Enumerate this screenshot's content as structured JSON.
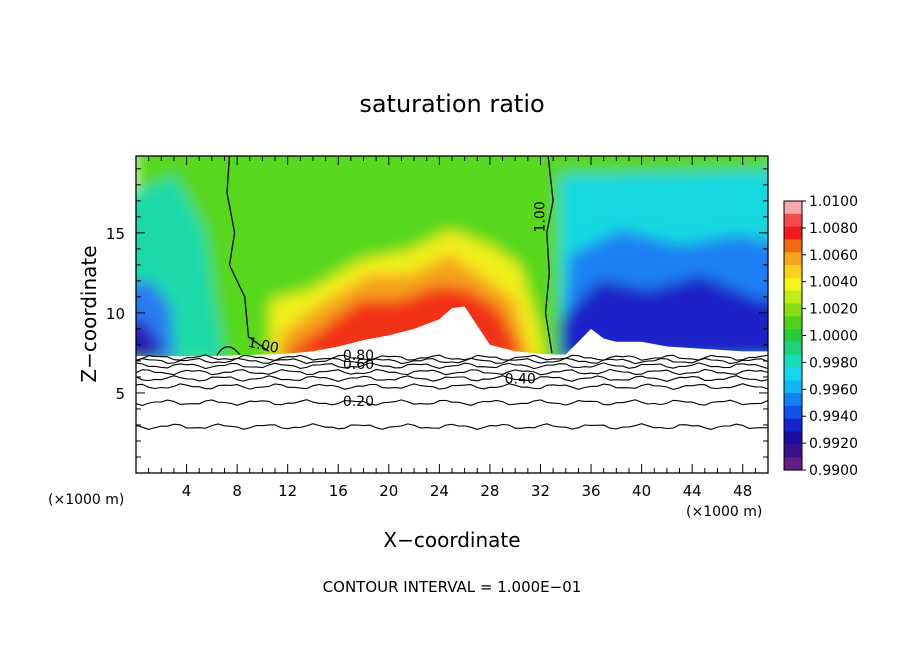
{
  "chart_data": {
    "type": "heatmap",
    "title": "saturation ratio",
    "xlabel": "X−coordinate",
    "ylabel": "Z−coordinate",
    "x_unit_left": "(×1000 m)",
    "x_unit_right": "(×1000 m)",
    "footer": "CONTOUR INTERVAL = 1.000E−01",
    "xlim": [
      0,
      50
    ],
    "ylim": [
      0,
      19.8
    ],
    "x_ticks": [
      4,
      8,
      12,
      16,
      20,
      24,
      28,
      32,
      36,
      40,
      44,
      48
    ],
    "y_ticks": [
      5,
      10,
      15
    ],
    "colorbar": {
      "levels": [
        "1.0100",
        "1.0080",
        "1.0060",
        "1.0040",
        "1.0020",
        "1.0000",
        "0.9980",
        "0.9960",
        "0.9940",
        "0.9920",
        "0.9900"
      ],
      "colors": [
        "#f7a7a7",
        "#f54b4b",
        "#f21a1a",
        "#f26a10",
        "#f7a51e",
        "#fbd01b",
        "#f4f41a",
        "#c2ec16",
        "#86de12",
        "#4fd31a",
        "#26cd3a",
        "#1cd57a",
        "#16dcc0",
        "#12d8ee",
        "#10b6f6",
        "#1082f4",
        "#1250ec",
        "#1422cf",
        "#1a0ea2",
        "#3a108a",
        "#681a86"
      ]
    },
    "surface_profile": [
      [
        0,
        7.3
      ],
      [
        4,
        7.3
      ],
      [
        6,
        7.3
      ],
      [
        8,
        7.35
      ],
      [
        10,
        7.4
      ],
      [
        12,
        7.45
      ],
      [
        14,
        7.6
      ],
      [
        16,
        7.9
      ],
      [
        18,
        8.3
      ],
      [
        20,
        8.6
      ],
      [
        22,
        9.0
      ],
      [
        24,
        9.6
      ],
      [
        25,
        10.3
      ],
      [
        26,
        10.4
      ],
      [
        27,
        9.2
      ],
      [
        28,
        8.0
      ],
      [
        30,
        7.6
      ],
      [
        32,
        7.45
      ],
      [
        33,
        7.4
      ],
      [
        34,
        7.4
      ],
      [
        35,
        8.2
      ],
      [
        36,
        9.0
      ],
      [
        37,
        8.4
      ],
      [
        38,
        8.2
      ],
      [
        40,
        8.2
      ],
      [
        42,
        7.9
      ],
      [
        44,
        7.8
      ],
      [
        46,
        7.7
      ],
      [
        48,
        7.6
      ],
      [
        50,
        7.6
      ]
    ],
    "moist_contours": [
      {
        "label": "1.00",
        "points": [
          [
            7.4,
            19.8
          ],
          [
            7.2,
            17.5
          ],
          [
            7.8,
            15
          ],
          [
            7.4,
            13
          ],
          [
            8.6,
            11
          ],
          [
            8.9,
            8.5
          ],
          [
            10.5,
            7.6
          ]
        ]
      },
      {
        "label": "1.00",
        "points": [
          [
            32.6,
            19.8
          ],
          [
            33.0,
            17
          ],
          [
            32.5,
            15
          ],
          [
            32.7,
            12.5
          ],
          [
            32.4,
            10
          ],
          [
            32.9,
            7.5
          ]
        ]
      }
    ],
    "stable_contours": [
      {
        "label": "0.80",
        "y": 7.0
      },
      {
        "label": "0.60",
        "y": 6.7
      },
      {
        "label": "0.40",
        "y": 5.9
      },
      {
        "label": "0.20",
        "y": 4.4
      },
      {
        "label": "",
        "y": 7.2
      },
      {
        "label": "",
        "y": 6.3
      },
      {
        "label": "",
        "y": 5.4
      },
      {
        "label": "",
        "y": 2.9
      }
    ],
    "contour_labels": [
      {
        "text": "1.00",
        "x": 10,
        "y": 7.7
      },
      {
        "text": "1.00",
        "x": 32.3,
        "y": 16
      },
      {
        "text": "0.80",
        "x": 17.6,
        "y": 7.05
      },
      {
        "text": "0.60",
        "x": 17.6,
        "y": 6.5
      },
      {
        "text": "0.40",
        "x": 30.4,
        "y": 5.6
      },
      {
        "text": "0.20",
        "x": 17.6,
        "y": 4.2
      }
    ]
  }
}
